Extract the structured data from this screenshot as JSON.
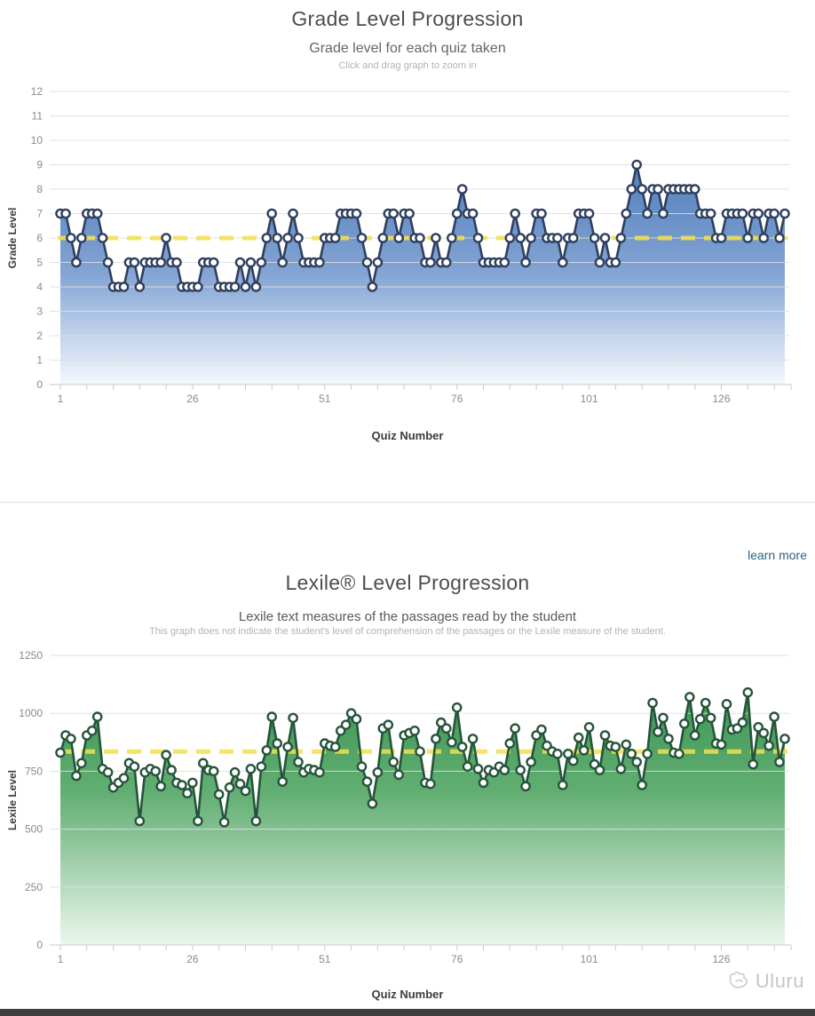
{
  "page": {
    "learn_more_label": "learn more",
    "watermark_text": "Uluru"
  },
  "chart_data": [
    {
      "type": "area",
      "title": "Grade Level Progression",
      "subtitle": "Grade level for each quiz taken",
      "hint": "Click and drag graph to zoom in",
      "xlabel": "Quiz Number",
      "ylabel": "Grade Level",
      "x_start": 1,
      "x_tick_labels": [
        1,
        26,
        51,
        76,
        101,
        126
      ],
      "x_minor_tick_step": 5,
      "ylim": [
        0,
        12
      ],
      "y_ticks": [
        0,
        1,
        2,
        3,
        4,
        5,
        6,
        7,
        8,
        9,
        10,
        11,
        12
      ],
      "grid": "horizontal",
      "legend": false,
      "average_line": 6,
      "average_line_color": "#f2df4e",
      "line_color": "#2f3f5e",
      "marker_fill": "#ffffff",
      "gradient_stops": [
        [
          "0%",
          "#4a78b8"
        ],
        [
          "50%",
          "#7da0d2"
        ],
        [
          "100%",
          "#f3f8fd"
        ]
      ],
      "values": [
        7,
        7,
        6,
        5,
        6,
        7,
        7,
        7,
        6,
        5,
        4,
        4,
        4,
        5,
        5,
        4,
        5,
        5,
        5,
        5,
        6,
        5,
        5,
        4,
        4,
        4,
        4,
        5,
        5,
        5,
        4,
        4,
        4,
        4,
        5,
        4,
        5,
        4,
        5,
        6,
        7,
        6,
        5,
        6,
        7,
        6,
        5,
        5,
        5,
        5,
        6,
        6,
        6,
        7,
        7,
        7,
        7,
        6,
        5,
        4,
        5,
        6,
        7,
        7,
        6,
        7,
        7,
        6,
        6,
        5,
        5,
        6,
        5,
        5,
        6,
        7,
        8,
        7,
        7,
        6,
        5,
        5,
        5,
        5,
        5,
        6,
        7,
        6,
        5,
        6,
        7,
        7,
        6,
        6,
        6,
        5,
        6,
        6,
        7,
        7,
        7,
        6,
        5,
        6,
        5,
        5,
        6,
        7,
        8,
        9,
        8,
        7,
        8,
        8,
        7,
        8,
        8,
        8,
        8,
        8,
        8,
        7,
        7,
        7,
        6,
        6,
        7,
        7,
        7,
        7,
        6,
        7,
        7,
        6,
        7,
        7,
        6,
        7
      ]
    },
    {
      "type": "area",
      "title": "Lexile® Level Progression",
      "subtitle": "Lexile text measures of the passages read by the student",
      "note": "This graph does not indicate the student's level of comprehension of the passages or the Lexile measure of the student.",
      "xlabel": "Quiz Number",
      "ylabel": "Lexile Level",
      "x_start": 1,
      "x_tick_labels": [
        1,
        26,
        51,
        76,
        101,
        126
      ],
      "x_minor_tick_step": 5,
      "ylim": [
        0,
        1250
      ],
      "y_ticks": [
        0,
        250,
        500,
        750,
        1000,
        1250
      ],
      "grid": "horizontal",
      "legend": false,
      "average_line": 835,
      "average_line_color": "#f2df4e",
      "line_color": "#26543a",
      "marker_fill": "#ffffff",
      "gradient_stops": [
        [
          "0%",
          "#33914d"
        ],
        [
          "40%",
          "#5aaa6b"
        ],
        [
          "100%",
          "#eaf6ec"
        ]
      ],
      "values": [
        830,
        905,
        890,
        730,
        785,
        905,
        925,
        985,
        760,
        745,
        680,
        700,
        720,
        785,
        770,
        535,
        745,
        760,
        750,
        685,
        820,
        755,
        700,
        690,
        655,
        700,
        535,
        785,
        755,
        750,
        650,
        530,
        680,
        745,
        695,
        665,
        760,
        535,
        770,
        840,
        985,
        870,
        705,
        855,
        980,
        790,
        745,
        760,
        755,
        745,
        870,
        860,
        855,
        925,
        950,
        1000,
        975,
        770,
        705,
        610,
        745,
        935,
        950,
        790,
        735,
        905,
        915,
        925,
        835,
        700,
        695,
        890,
        960,
        935,
        875,
        1025,
        855,
        770,
        890,
        760,
        700,
        755,
        745,
        770,
        755,
        870,
        935,
        755,
        685,
        790,
        905,
        930,
        860,
        835,
        825,
        690,
        825,
        795,
        895,
        840,
        940,
        780,
        755,
        905,
        860,
        855,
        760,
        865,
        825,
        790,
        690,
        825,
        1045,
        920,
        980,
        890,
        830,
        825,
        955,
        1070,
        905,
        975,
        1045,
        980,
        870,
        865,
        1040,
        930,
        935,
        960,
        1090,
        780,
        940,
        915,
        860,
        985,
        790,
        890
      ]
    }
  ]
}
